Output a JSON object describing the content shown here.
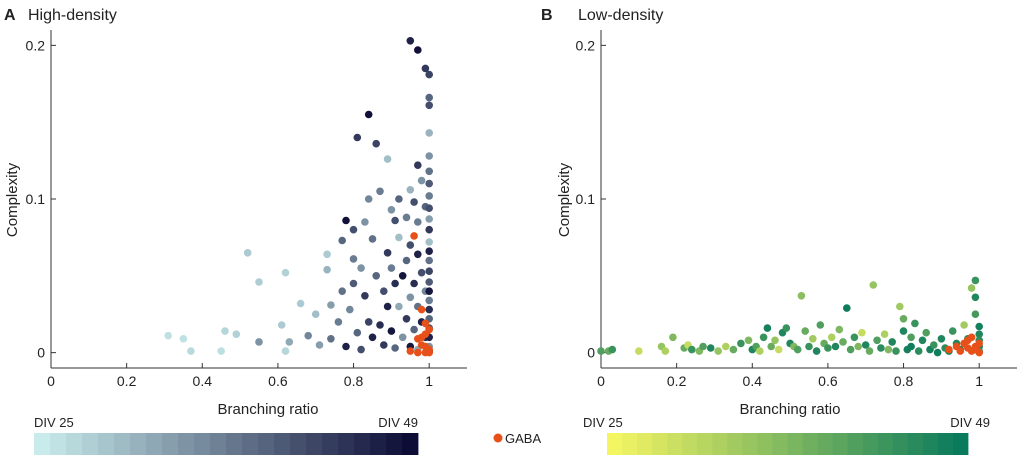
{
  "chart_data": [
    {
      "type": "scatter",
      "panel_label": "A",
      "title": "High-density",
      "xlabel": "Branching ratio",
      "ylabel": "Complexity",
      "xlim": [
        0,
        1.1
      ],
      "ylim": [
        -0.01,
        0.21
      ],
      "x_ticks": [
        0,
        0.2,
        0.4,
        0.6,
        0.8,
        1
      ],
      "x_tick_labels": [
        "0",
        "0.2",
        "0.4",
        "0.6",
        "0.8",
        "1"
      ],
      "y_ticks": [
        0,
        0.1,
        0.2
      ],
      "y_tick_labels": [
        "0",
        "0.1",
        "0.2"
      ],
      "colorbar": {
        "min_label": "DIV 25",
        "max_label": "DIV 49",
        "min_color": "#c8ecec",
        "max_color": "#0c0c36"
      },
      "points": [
        [
          0.31,
          0.011,
          0.05
        ],
        [
          0.35,
          0.009,
          0.05
        ],
        [
          0.37,
          0.001,
          0.08
        ],
        [
          0.46,
          0.014,
          0.1
        ],
        [
          0.49,
          0.012,
          0.12
        ],
        [
          0.45,
          0.001,
          0.06
        ],
        [
          0.52,
          0.065,
          0.15
        ],
        [
          0.55,
          0.046,
          0.14
        ],
        [
          0.55,
          0.007,
          0.4
        ],
        [
          0.62,
          0.052,
          0.12
        ],
        [
          0.61,
          0.018,
          0.15
        ],
        [
          0.63,
          0.007,
          0.3
        ],
        [
          0.62,
          0.001,
          0.1
        ],
        [
          0.66,
          0.032,
          0.15
        ],
        [
          0.68,
          0.011,
          0.45
        ],
        [
          0.7,
          0.025,
          0.2
        ],
        [
          0.71,
          0.005,
          0.35
        ],
        [
          0.73,
          0.064,
          0.15
        ],
        [
          0.73,
          0.054,
          0.25
        ],
        [
          0.74,
          0.031,
          0.35
        ],
        [
          0.74,
          0.009,
          0.55
        ],
        [
          0.76,
          0.02,
          0.5
        ],
        [
          0.77,
          0.04,
          0.55
        ],
        [
          0.77,
          0.073,
          0.6
        ],
        [
          0.78,
          0.086,
          0.98
        ],
        [
          0.78,
          0.004,
          0.9
        ],
        [
          0.79,
          0.028,
          0.45
        ],
        [
          0.8,
          0.061,
          0.5
        ],
        [
          0.8,
          0.045,
          0.65
        ],
        [
          0.8,
          0.08,
          0.7
        ],
        [
          0.81,
          0.14,
          0.8
        ],
        [
          0.81,
          0.013,
          0.6
        ],
        [
          0.82,
          0.002,
          0.7
        ],
        [
          0.82,
          0.055,
          0.4
        ],
        [
          0.83,
          0.037,
          0.8
        ],
        [
          0.83,
          0.085,
          0.4
        ],
        [
          0.84,
          0.155,
          0.98
        ],
        [
          0.84,
          0.1,
          0.45
        ],
        [
          0.84,
          0.02,
          0.75
        ],
        [
          0.85,
          0.074,
          0.55
        ],
        [
          0.85,
          0.01,
          0.9
        ],
        [
          0.86,
          0.136,
          0.75
        ],
        [
          0.86,
          0.05,
          0.6
        ],
        [
          0.87,
          0.018,
          0.85
        ],
        [
          0.87,
          0.105,
          0.5
        ],
        [
          0.88,
          0.04,
          0.7
        ],
        [
          0.88,
          0.005,
          0.8
        ],
        [
          0.89,
          0.126,
          0.2
        ],
        [
          0.89,
          0.065,
          0.8
        ],
        [
          0.89,
          0.03,
          0.9
        ],
        [
          0.9,
          0.093,
          0.4
        ],
        [
          0.9,
          0.055,
          0.5
        ],
        [
          0.9,
          0.014,
          0.95
        ],
        [
          0.91,
          0.086,
          0.7
        ],
        [
          0.91,
          0.045,
          0.85
        ],
        [
          0.91,
          0.003,
          0.6
        ],
        [
          0.92,
          0.075,
          0.2
        ],
        [
          0.92,
          0.03,
          0.3
        ],
        [
          0.92,
          0.1,
          0.6
        ],
        [
          0.93,
          0.05,
          0.95
        ],
        [
          0.93,
          0.01,
          0.4
        ],
        [
          0.94,
          0.088,
          0.5
        ],
        [
          0.94,
          0.06,
          0.6
        ],
        [
          0.94,
          0.022,
          0.8
        ],
        [
          0.95,
          0.203,
          0.9
        ],
        [
          0.95,
          0.106,
          0.25
        ],
        [
          0.95,
          0.07,
          0.7
        ],
        [
          0.95,
          0.036,
          0.4
        ],
        [
          0.95,
          0.004,
          0.95
        ],
        [
          0.96,
          0.098,
          0.7
        ],
        [
          0.96,
          0.045,
          0.85
        ],
        [
          0.96,
          0.015,
          0.6
        ],
        [
          0.97,
          0.197,
          0.98
        ],
        [
          0.97,
          0.122,
          0.8
        ],
        [
          0.97,
          0.085,
          0.5
        ],
        [
          0.97,
          0.064,
          0.9
        ],
        [
          0.97,
          0.03,
          0.55
        ],
        [
          0.97,
          0.002,
          0.3
        ],
        [
          0.98,
          0.112,
          0.4
        ],
        [
          0.98,
          0.052,
          0.7
        ],
        [
          0.98,
          0.02,
          0.9
        ],
        [
          0.99,
          0.185,
          0.8
        ],
        [
          0.99,
          0.095,
          0.6
        ],
        [
          0.99,
          0.04,
          0.45
        ],
        [
          0.99,
          0.01,
          0.85
        ],
        [
          1.0,
          0.181,
          0.75
        ],
        [
          1.0,
          0.166,
          0.6
        ],
        [
          1.0,
          0.161,
          0.7
        ],
        [
          1.0,
          0.143,
          0.25
        ],
        [
          1.0,
          0.128,
          0.4
        ],
        [
          1.0,
          0.118,
          0.55
        ],
        [
          1.0,
          0.11,
          0.65
        ],
        [
          1.0,
          0.102,
          0.5
        ],
        [
          1.0,
          0.094,
          0.7
        ],
        [
          1.0,
          0.087,
          0.35
        ],
        [
          1.0,
          0.08,
          0.8
        ],
        [
          1.0,
          0.072,
          0.2
        ],
        [
          1.0,
          0.066,
          0.9
        ],
        [
          1.0,
          0.06,
          0.55
        ],
        [
          1.0,
          0.053,
          0.75
        ],
        [
          1.0,
          0.046,
          0.65
        ],
        [
          1.0,
          0.04,
          0.95
        ],
        [
          1.0,
          0.034,
          0.5
        ],
        [
          1.0,
          0.028,
          0.85
        ],
        [
          1.0,
          0.022,
          0.6
        ],
        [
          1.0,
          0.016,
          0.7
        ],
        [
          1.0,
          0.01,
          0.9
        ],
        [
          1.0,
          0.004,
          0.4
        ],
        [
          1.0,
          0.001,
          0.8
        ]
      ],
      "gaba_points": [
        [
          0.96,
          0.076
        ],
        [
          0.98,
          0.028
        ],
        [
          0.99,
          0.019
        ],
        [
          0.99,
          0.012
        ],
        [
          1.0,
          0.015
        ],
        [
          0.97,
          0.009
        ],
        [
          0.98,
          0.005
        ],
        [
          0.99,
          0.004
        ],
        [
          1.0,
          0.002
        ],
        [
          0.95,
          0.001
        ],
        [
          0.97,
          0.0
        ],
        [
          0.99,
          0.0
        ],
        [
          1.0,
          0.0
        ],
        [
          0.98,
          0.01
        ]
      ]
    },
    {
      "type": "scatter",
      "panel_label": "B",
      "title": "Low-density",
      "xlabel": "Branching ratio",
      "ylabel": "Complexity",
      "xlim": [
        0,
        1.1
      ],
      "ylim": [
        -0.01,
        0.21
      ],
      "x_ticks": [
        0,
        0.2,
        0.4,
        0.6,
        0.8,
        1
      ],
      "x_tick_labels": [
        "0",
        "0.2",
        "0.4",
        "0.6",
        "0.8",
        "1"
      ],
      "y_ticks": [
        0,
        0.1,
        0.2
      ],
      "y_tick_labels": [
        "0",
        "0.1",
        "0.2"
      ],
      "colorbar": {
        "min_label": "DIV 25",
        "max_label": "DIV 49",
        "min_color": "#f4f563",
        "max_color": "#0a7a5c"
      },
      "points": [
        [
          0.0,
          0.001,
          0.7
        ],
        [
          0.02,
          0.001,
          0.6
        ],
        [
          0.03,
          0.002,
          0.8
        ],
        [
          0.1,
          0.001,
          0.2
        ],
        [
          0.16,
          0.004,
          0.4
        ],
        [
          0.17,
          0.001,
          0.3
        ],
        [
          0.19,
          0.01,
          0.5
        ],
        [
          0.22,
          0.003,
          0.6
        ],
        [
          0.23,
          0.005,
          0.2
        ],
        [
          0.24,
          0.002,
          0.8
        ],
        [
          0.26,
          0.001,
          0.5
        ],
        [
          0.27,
          0.004,
          0.7
        ],
        [
          0.29,
          0.003,
          0.9
        ],
        [
          0.31,
          0.001,
          0.4
        ],
        [
          0.33,
          0.004,
          0.3
        ],
        [
          0.35,
          0.002,
          0.6
        ],
        [
          0.37,
          0.006,
          0.8
        ],
        [
          0.39,
          0.008,
          0.5
        ],
        [
          0.4,
          0.002,
          0.9
        ],
        [
          0.41,
          0.004,
          0.7
        ],
        [
          0.42,
          0.001,
          0.3
        ],
        [
          0.43,
          0.01,
          0.8
        ],
        [
          0.44,
          0.016,
          0.95
        ],
        [
          0.45,
          0.004,
          0.6
        ],
        [
          0.46,
          0.008,
          0.4
        ],
        [
          0.47,
          0.002,
          0.2
        ],
        [
          0.48,
          0.013,
          0.9
        ],
        [
          0.49,
          0.016,
          0.8
        ],
        [
          0.5,
          0.006,
          0.9
        ],
        [
          0.51,
          0.004,
          0.5
        ],
        [
          0.52,
          0.002,
          0.7
        ],
        [
          0.53,
          0.037,
          0.45
        ],
        [
          0.54,
          0.014,
          0.6
        ],
        [
          0.55,
          0.004,
          0.8
        ],
        [
          0.56,
          0.009,
          0.35
        ],
        [
          0.57,
          0.001,
          0.9
        ],
        [
          0.58,
          0.018,
          0.7
        ],
        [
          0.59,
          0.006,
          0.6
        ],
        [
          0.6,
          0.003,
          0.8
        ],
        [
          0.61,
          0.01,
          0.3
        ],
        [
          0.62,
          0.004,
          0.9
        ],
        [
          0.63,
          0.015,
          0.5
        ],
        [
          0.64,
          0.007,
          0.6
        ],
        [
          0.65,
          0.029,
          0.98
        ],
        [
          0.66,
          0.002,
          0.7
        ],
        [
          0.67,
          0.01,
          0.8
        ],
        [
          0.68,
          0.004,
          0.5
        ],
        [
          0.69,
          0.013,
          0.2
        ],
        [
          0.7,
          0.005,
          0.9
        ],
        [
          0.71,
          0.001,
          0.6
        ],
        [
          0.72,
          0.044,
          0.4
        ],
        [
          0.73,
          0.008,
          0.7
        ],
        [
          0.74,
          0.003,
          0.85
        ],
        [
          0.75,
          0.012,
          0.3
        ],
        [
          0.76,
          0.002,
          0.5
        ],
        [
          0.77,
          0.007,
          0.9
        ],
        [
          0.78,
          0.001,
          0.8
        ],
        [
          0.79,
          0.03,
          0.35
        ],
        [
          0.8,
          0.014,
          0.9
        ],
        [
          0.8,
          0.022,
          0.6
        ],
        [
          0.81,
          0.002,
          0.95
        ],
        [
          0.82,
          0.01,
          0.7
        ],
        [
          0.82,
          0.004,
          0.98
        ],
        [
          0.83,
          0.019,
          0.8
        ],
        [
          0.84,
          0.001,
          0.85
        ],
        [
          0.85,
          0.008,
          0.9
        ],
        [
          0.86,
          0.013,
          0.7
        ],
        [
          0.87,
          0.002,
          0.95
        ],
        [
          0.88,
          0.005,
          0.8
        ],
        [
          0.89,
          0.0,
          0.98
        ],
        [
          0.9,
          0.009,
          0.9
        ],
        [
          0.91,
          0.003,
          0.85
        ],
        [
          0.92,
          0.001,
          0.95
        ],
        [
          0.93,
          0.014,
          0.8
        ],
        [
          0.94,
          0.006,
          0.9
        ],
        [
          0.95,
          0.002,
          0.95
        ],
        [
          0.96,
          0.018,
          0.35
        ],
        [
          0.97,
          0.009,
          0.85
        ],
        [
          0.98,
          0.042,
          0.4
        ],
        [
          0.99,
          0.047,
          0.8
        ],
        [
          0.99,
          0.036,
          0.9
        ],
        [
          0.99,
          0.025,
          0.75
        ],
        [
          1.0,
          0.017,
          0.95
        ],
        [
          1.0,
          0.012,
          0.9
        ],
        [
          1.0,
          0.008,
          0.85
        ],
        [
          1.0,
          0.004,
          0.95
        ],
        [
          1.0,
          0.001,
          0.8
        ]
      ],
      "gaba_points": [
        [
          0.92,
          0.002
        ],
        [
          0.94,
          0.004
        ],
        [
          0.95,
          0.001
        ],
        [
          0.96,
          0.006
        ],
        [
          0.97,
          0.003
        ],
        [
          0.97,
          0.008
        ],
        [
          0.98,
          0.001
        ],
        [
          0.98,
          0.01
        ],
        [
          0.99,
          0.004
        ],
        [
          1.0,
          0.0
        ],
        [
          1.0,
          0.006
        ],
        [
          0.99,
          0.002
        ]
      ]
    }
  ],
  "legend": {
    "gaba_label": "GABA",
    "gaba_color": "#e8501a"
  }
}
